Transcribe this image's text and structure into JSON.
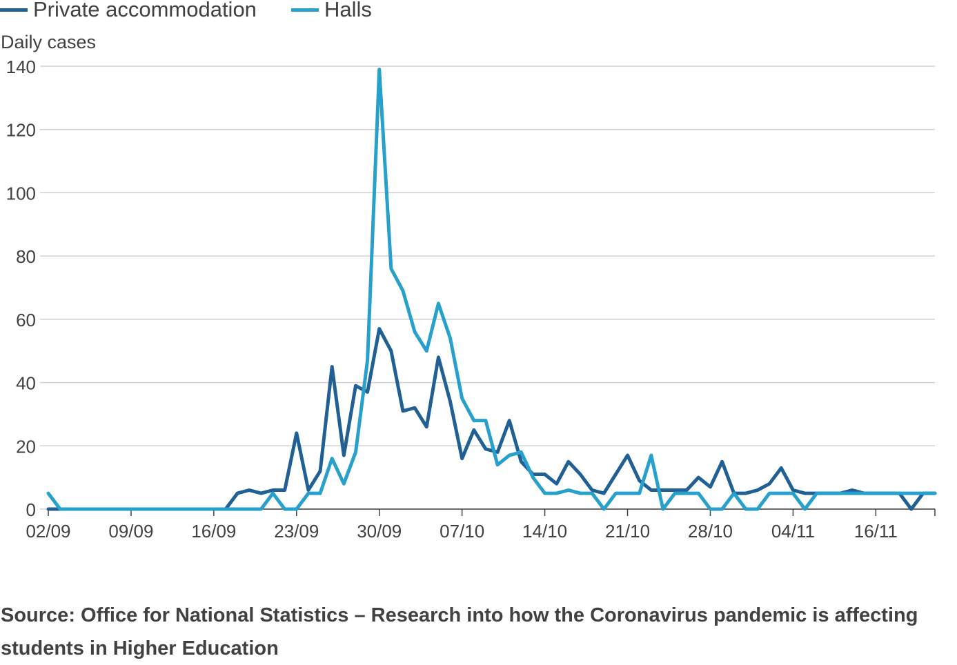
{
  "chart_data": {
    "type": "line",
    "legend_position": "top-left",
    "ylabel": "Daily cases",
    "ylim": [
      0,
      140
    ],
    "yticks": [
      0,
      20,
      40,
      60,
      80,
      100,
      120,
      140
    ],
    "grid": "horizontal",
    "xlim": [
      "02/09",
      "16/11"
    ],
    "xtick_labels": [
      "02/09",
      "09/09",
      "16/09",
      "23/09",
      "30/09",
      "07/10",
      "14/10",
      "21/10",
      "28/10",
      "04/11",
      "16/11"
    ],
    "series": [
      {
        "name": "Private accommodation",
        "color": "#206095",
        "values": [
          0,
          0,
          0,
          0,
          0,
          0,
          0,
          0,
          0,
          0,
          0,
          0,
          0,
          0,
          0,
          0,
          5,
          6,
          5,
          6,
          6,
          24,
          6,
          12,
          45,
          17,
          39,
          37,
          57,
          50,
          31,
          32,
          26,
          48,
          34,
          16,
          25,
          19,
          18,
          28,
          15,
          11,
          11,
          8,
          15,
          11,
          6,
          5,
          11,
          17,
          9,
          6,
          6,
          6,
          6,
          10,
          7,
          15,
          5,
          5,
          6,
          8,
          13,
          6,
          5,
          5,
          5,
          5,
          6,
          5,
          5,
          5,
          5,
          0,
          5,
          5
        ]
      },
      {
        "name": "Halls",
        "color": "#27a0cc",
        "values": [
          5,
          0,
          0,
          0,
          0,
          0,
          0,
          0,
          0,
          0,
          0,
          0,
          0,
          0,
          0,
          0,
          0,
          0,
          0,
          5,
          0,
          0,
          5,
          5,
          16,
          8,
          18,
          47,
          139,
          76,
          69,
          56,
          50,
          65,
          54,
          35,
          28,
          28,
          14,
          17,
          18,
          10,
          5,
          5,
          6,
          5,
          5,
          0,
          5,
          5,
          5,
          17,
          0,
          5,
          5,
          5,
          0,
          0,
          5,
          0,
          0,
          5,
          5,
          5,
          0,
          5,
          5,
          5,
          5,
          5,
          5,
          5,
          5,
          5,
          5,
          5
        ]
      }
    ]
  },
  "source_text": "Source: Office for National Statistics – Research into how the Coronavirus pandemic is affecting students in Higher Education"
}
